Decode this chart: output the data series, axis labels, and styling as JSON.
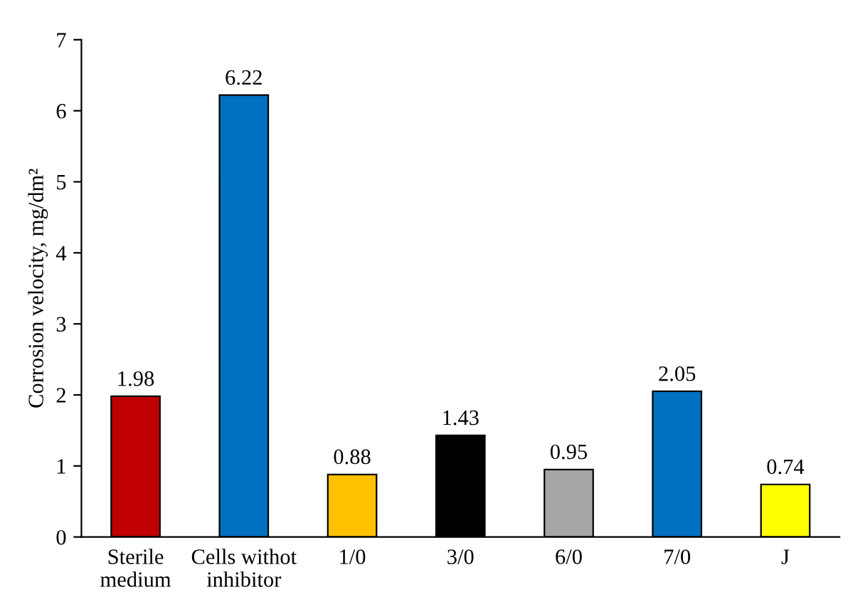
{
  "chart_data": {
    "type": "bar",
    "ylabel": "Corrosion velocity, mg/dm²",
    "categories": [
      "Sterile\nmedium",
      "Cells withot\ninhibitor",
      "1/0",
      "3/0",
      "6/0",
      "7/0",
      "J"
    ],
    "values": [
      1.98,
      6.22,
      0.88,
      1.43,
      0.95,
      2.05,
      0.74
    ],
    "colors": [
      "#c00000",
      "#0070c0",
      "#ffc000",
      "#000000",
      "#a6a6a6",
      "#0070c0",
      "#ffff00"
    ],
    "ylim": [
      0,
      7
    ],
    "yticks": [
      0,
      1,
      2,
      3,
      4,
      5,
      6,
      7
    ],
    "grid": false,
    "data_labels": true,
    "legend": false
  }
}
